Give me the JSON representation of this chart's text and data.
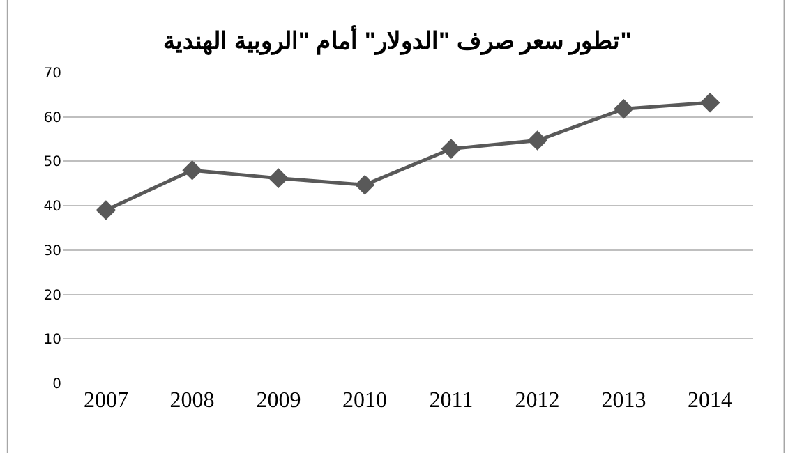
{
  "chart_data": {
    "type": "line",
    "title": "تطور سعر صرف \"الدولار\" أمام \"الروبية الهندية\"",
    "categories": [
      "2007",
      "2008",
      "2009",
      "2010",
      "2011",
      "2012",
      "2013",
      "2014"
    ],
    "series": [
      {
        "color": "#595959",
        "values": [
          39.0,
          48.0,
          46.2,
          44.7,
          52.8,
          54.7,
          61.8,
          63.2
        ]
      }
    ],
    "ylim": [
      0,
      70
    ],
    "yticks": [
      0,
      10,
      20,
      30,
      40,
      50,
      60,
      70
    ],
    "grid": "y",
    "marker": "diamond",
    "line_style": "solid"
  }
}
